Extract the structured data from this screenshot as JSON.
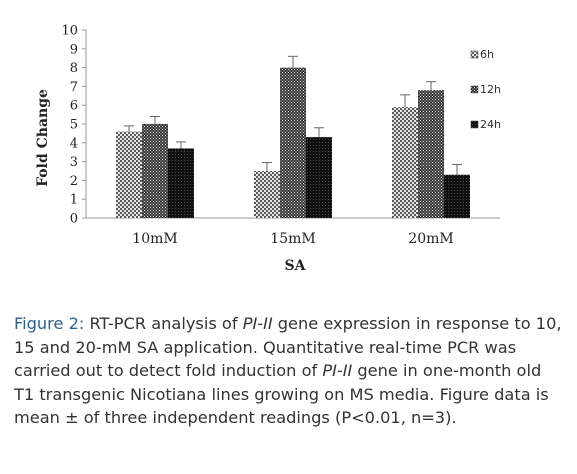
{
  "chart_data": {
    "type": "bar",
    "categories": [
      "10mM",
      "15mM",
      "20mM"
    ],
    "series": [
      {
        "name": "6h",
        "values": [
          4.6,
          2.5,
          5.9
        ],
        "errors": [
          0.3,
          0.45,
          0.65
        ],
        "pattern": "checker"
      },
      {
        "name": "12h",
        "values": [
          5.0,
          8.0,
          6.8
        ],
        "errors": [
          0.4,
          0.6,
          0.45
        ],
        "pattern": "dense"
      },
      {
        "name": "24h",
        "values": [
          3.7,
          4.3,
          2.3
        ],
        "errors": [
          0.35,
          0.5,
          0.55
        ],
        "pattern": "dark"
      }
    ],
    "xlabel": "SA",
    "ylabel": "Fold Change",
    "ylim": [
      0,
      10
    ],
    "yticks": [
      "0",
      "1",
      "2",
      "3",
      "4",
      "5",
      "6",
      "7",
      "8",
      "9",
      "10"
    ],
    "legend_position": "right",
    "grid": false
  },
  "caption": {
    "label": "Figure 2:",
    "parts": [
      {
        "t": " RT-PCR analysis of ",
        "i": false
      },
      {
        "t": "PI-II",
        "i": true
      },
      {
        "t": " gene expression in response to 10, 15 and 20-mM SA application. Quantitative real-time PCR was carried out to detect fold induction of ",
        "i": false
      },
      {
        "t": "PI-II",
        "i": true
      },
      {
        "t": " gene in one-month old T1 transgenic Nicotiana lines growing on MS media. Figure data is mean ± of three independent readings (P<0.01, n=3).",
        "i": false
      }
    ]
  }
}
